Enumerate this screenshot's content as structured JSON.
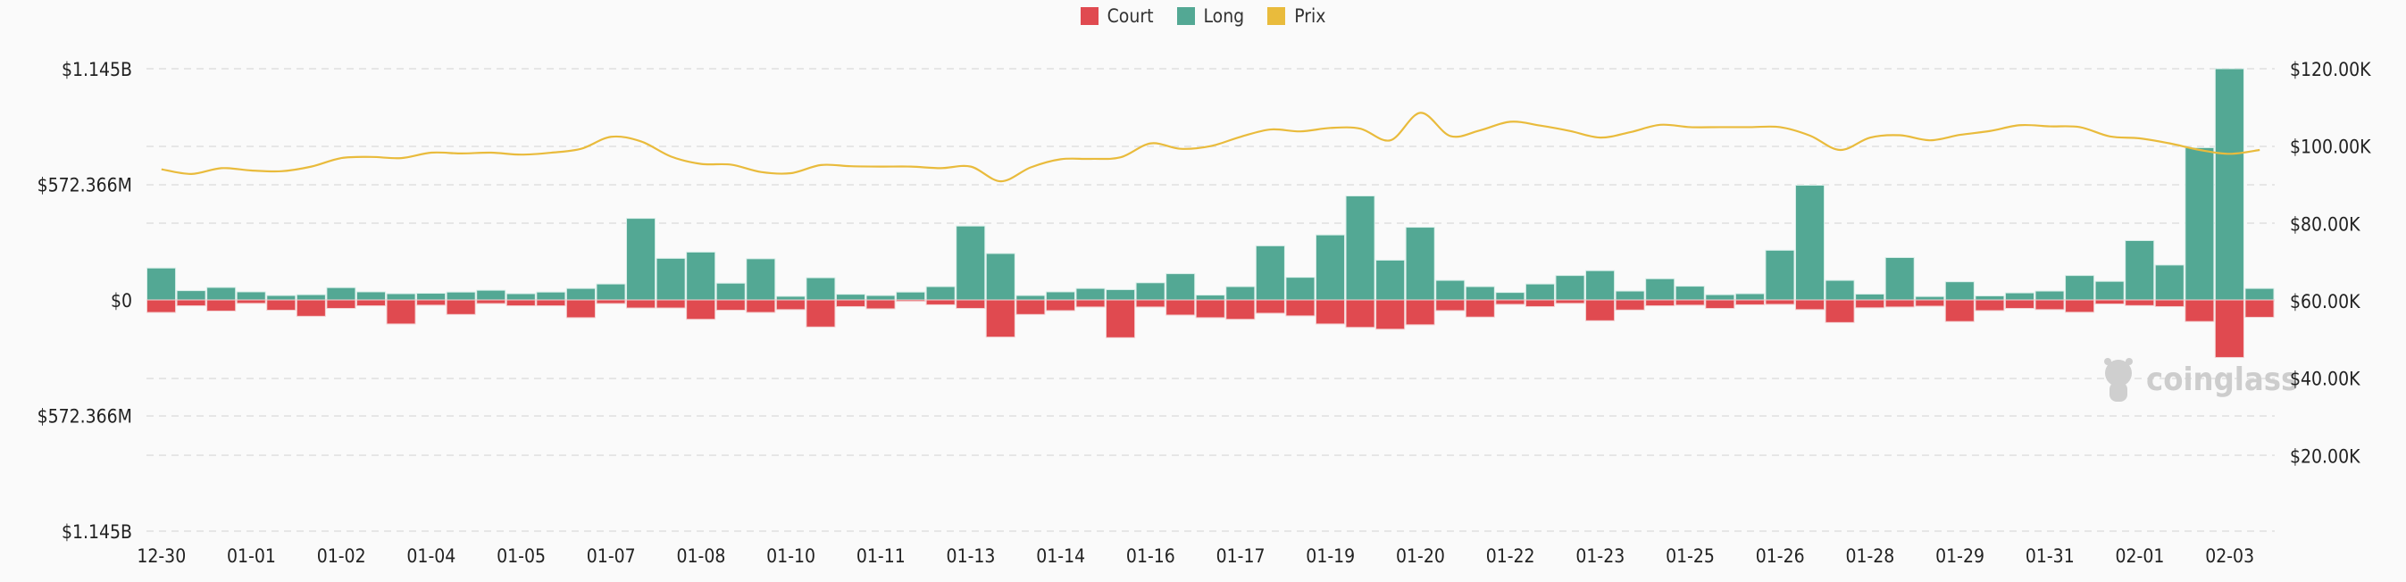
{
  "legend": [
    {
      "label": "Court",
      "color": "#e04a50"
    },
    {
      "label": "Long",
      "color": "#53a894"
    },
    {
      "label": "Prix",
      "color": "#e9bb3c"
    }
  ],
  "watermark": "coinglass",
  "chart_data": {
    "type": "bar+line",
    "title": "",
    "bar_interval": "12h",
    "left_axis": {
      "ticks": [
        "$1.145B",
        "$572.366M",
        "$0",
        "$572.366M",
        "$1.145B"
      ],
      "range_usd_millions": [
        -1145,
        1145
      ]
    },
    "right_axis": {
      "ticks": [
        "$120.00K",
        "$100.00K",
        "$80.00K",
        "$60.00K",
        "$40.00K",
        "$20.00K"
      ],
      "range_usd_thousands": [
        0,
        120
      ]
    },
    "x_tick_labels": [
      "12-30",
      "01-01",
      "01-02",
      "01-04",
      "01-05",
      "01-07",
      "01-08",
      "01-10",
      "01-11",
      "01-13",
      "01-14",
      "01-16",
      "01-17",
      "01-19",
      "01-20",
      "01-22",
      "01-23",
      "01-25",
      "01-26",
      "01-28",
      "01-29",
      "01-31",
      "02-01",
      "02-03"
    ],
    "grid": true,
    "legend_position": "top",
    "series": [
      {
        "name": "Long",
        "unit": "USD millions",
        "axis": "left",
        "values": [
          158,
          46,
          62,
          40,
          22,
          26,
          61,
          40,
          31,
          33,
          39,
          48,
          31,
          39,
          57,
          79,
          404,
          206,
          237,
          83,
          204,
          18,
          110,
          28,
          22,
          39,
          66,
          366,
          230,
          22,
          40,
          57,
          51,
          85,
          130,
          24,
          66,
          268,
          112,
          322,
          515,
          197,
          360,
          97,
          66,
          37,
          79,
          121,
          145,
          44,
          105,
          68,
          26,
          31,
          246,
          568,
          97,
          29,
          210,
          17,
          90,
          20,
          35,
          44,
          121,
          92,
          294,
          173,
          754,
          1145,
          57
        ]
      },
      {
        "name": "Court",
        "unit": "USD millions",
        "axis": "left",
        "values": [
          62,
          29,
          55,
          17,
          51,
          81,
          42,
          29,
          119,
          26,
          72,
          18,
          29,
          29,
          88,
          18,
          40,
          40,
          96,
          51,
          62,
          48,
          134,
          33,
          44,
          7,
          24,
          42,
          184,
          72,
          53,
          35,
          187,
          35,
          75,
          88,
          96,
          66,
          79,
          119,
          136,
          145,
          123,
          53,
          85,
          22,
          33,
          17,
          103,
          50,
          29,
          26,
          42,
          24,
          22,
          48,
          112,
          39,
          35,
          31,
          107,
          53,
          42,
          48,
          61,
          20,
          28,
          33,
          107,
          285,
          86
        ]
      },
      {
        "name": "Prix",
        "unit": "USD thousands",
        "axis": "right",
        "values": [
          94.0,
          92.8,
          94.3,
          93.7,
          93.5,
          94.7,
          96.9,
          97.2,
          96.9,
          98.3,
          98.1,
          98.3,
          97.8,
          98.3,
          99.3,
          102.4,
          101.2,
          97.3,
          95.4,
          95.2,
          93.3,
          93.0,
          95.1,
          94.8,
          94.7,
          94.7,
          94.3,
          94.7,
          90.9,
          94.5,
          96.6,
          96.7,
          97.1,
          100.7,
          99.3,
          100.0,
          102.4,
          104.3,
          103.8,
          104.7,
          104.5,
          101.5,
          108.6,
          102.6,
          104.1,
          106.3,
          105.3,
          103.9,
          102.2,
          103.6,
          105.5,
          104.9,
          104.9,
          104.9,
          104.9,
          102.7,
          99.0,
          102.2,
          102.8,
          101.5,
          102.9,
          103.9,
          105.4,
          105.1,
          104.9,
          102.5,
          102.0,
          100.7,
          99.0,
          98.0,
          99.0
        ]
      }
    ]
  }
}
